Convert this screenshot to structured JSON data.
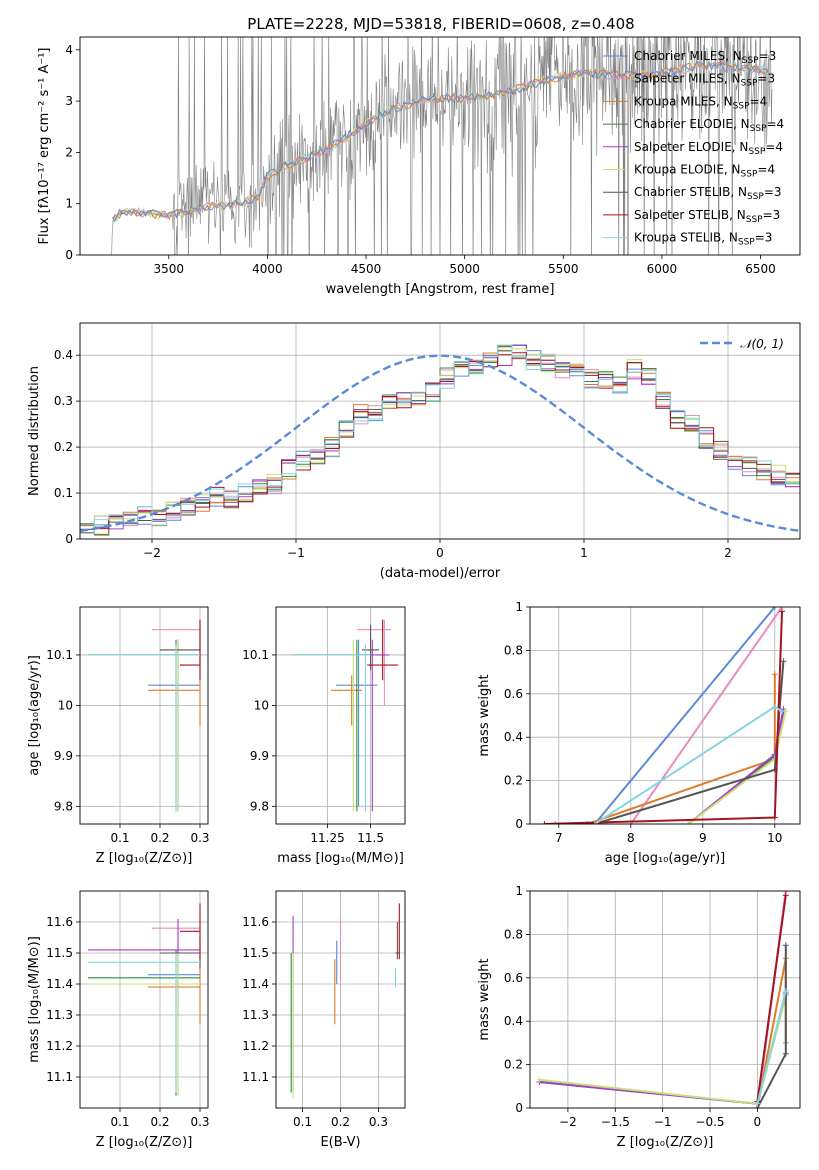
{
  "figure_title": "PLATE=2228, MJD=53818, FIBERID=0608, z=0.408",
  "colors": {
    "Chabrier MILES": "#5b8bd8",
    "Salpeter MILES": "#e88cbf",
    "Kroupa MILES": "#e07b2a",
    "Chabrier ELODIE": "#2f8a3e",
    "Salpeter ELODIE": "#a83cc8",
    "Kroupa ELODIE": "#c6e07a",
    "Chabrier STELIB": "#555555",
    "Salpeter STELIB": "#a5141c",
    "Kroupa STELIB": "#86d4e0",
    "spectrum": "#808080",
    "gaussian": "#5b8bd8",
    "grid": "#b0b0b0"
  },
  "chart_data": [
    {
      "id": "spectrum",
      "type": "line",
      "xlabel": "wavelength [Angstrom, rest frame]",
      "ylabel": "Flux [f$_\\lambda$10$^{-17}$ erg cm$^{-2}$ s$^{-1}$ A$^{-1}$]",
      "ylabel_text": "Flux [fλ10⁻¹⁷ erg cm⁻² s⁻¹ A⁻¹]",
      "xlim": [
        3050,
        6700
      ],
      "ylim": [
        0,
        4.25
      ],
      "xticks": [
        3500,
        4000,
        4500,
        5000,
        5500,
        6000,
        6500
      ],
      "yticks": [
        0,
        1,
        2,
        3,
        4
      ],
      "grid": false,
      "legend_position": "top-right",
      "legend": [
        {
          "model": "Chabrier MILES",
          "label": "Chabrier MILES, N",
          "sub": "SSP",
          "suffix": "=3"
        },
        {
          "model": "Salpeter MILES",
          "label": "Salpeter MILES, N",
          "sub": "SSP",
          "suffix": "=3"
        },
        {
          "model": "Kroupa MILES",
          "label": "Kroupa MILES, N",
          "sub": "SSP",
          "suffix": "=4"
        },
        {
          "model": "Chabrier ELODIE",
          "label": "Chabrier ELODIE, N",
          "sub": "SSP",
          "suffix": "=4"
        },
        {
          "model": "Salpeter ELODIE",
          "label": "Salpeter ELODIE, N",
          "sub": "SSP",
          "suffix": "=4"
        },
        {
          "model": "Kroupa ELODIE",
          "label": "Kroupa ELODIE, N",
          "sub": "SSP",
          "suffix": "=4"
        },
        {
          "model": "Chabrier STELIB",
          "label": "Chabrier STELIB, N",
          "sub": "SSP",
          "suffix": "=3"
        },
        {
          "model": "Salpeter STELIB",
          "label": "Salpeter STELIB, N",
          "sub": "SSP",
          "suffix": "=3"
        },
        {
          "model": "Kroupa STELIB",
          "label": "Kroupa STELIB, N",
          "sub": "SSP",
          "suffix": "=3"
        }
      ],
      "continuum_points": [
        [
          3210,
          0
        ],
        [
          3215,
          0.65
        ],
        [
          3250,
          0.8
        ],
        [
          3300,
          0.85
        ],
        [
          3400,
          0.8
        ],
        [
          3500,
          0.78
        ],
        [
          3600,
          0.85
        ],
        [
          3700,
          0.95
        ],
        [
          3800,
          0.95
        ],
        [
          3900,
          1.05
        ],
        [
          3950,
          1.1
        ],
        [
          4000,
          1.55
        ],
        [
          4100,
          1.75
        ],
        [
          4200,
          1.9
        ],
        [
          4300,
          2.05
        ],
        [
          4400,
          2.3
        ],
        [
          4500,
          2.55
        ],
        [
          4600,
          2.8
        ],
        [
          4700,
          2.9
        ],
        [
          4800,
          3.05
        ],
        [
          5000,
          3.05
        ],
        [
          5200,
          3.15
        ],
        [
          5400,
          3.4
        ],
        [
          5600,
          3.55
        ],
        [
          5800,
          3.5
        ],
        [
          6000,
          3.55
        ],
        [
          6200,
          3.7
        ],
        [
          6400,
          3.65
        ],
        [
          6550,
          3.6
        ]
      ]
    },
    {
      "id": "residuals",
      "type": "bar",
      "xlabel": "(data-model)/error",
      "ylabel": "Normed distribution",
      "xlim": [
        -2.5,
        2.5
      ],
      "ylim": [
        0,
        0.47
      ],
      "xticks": [
        -2,
        -1,
        0,
        1,
        2
      ],
      "yticks": [
        0.0,
        0.1,
        0.2,
        0.3,
        0.4
      ],
      "grid": true,
      "legend_position": "top-right",
      "legend_label": "𝒩(0, 1)",
      "bin_width": 0.1,
      "bin_start": -2.5,
      "base_heights": [
        0.02,
        0.03,
        0.04,
        0.04,
        0.05,
        0.05,
        0.06,
        0.07,
        0.08,
        0.09,
        0.09,
        0.1,
        0.11,
        0.12,
        0.15,
        0.17,
        0.18,
        0.2,
        0.24,
        0.27,
        0.28,
        0.3,
        0.3,
        0.31,
        0.32,
        0.35,
        0.37,
        0.38,
        0.39,
        0.4,
        0.41,
        0.39,
        0.38,
        0.37,
        0.36,
        0.35,
        0.35,
        0.34,
        0.37,
        0.35,
        0.3,
        0.26,
        0.25,
        0.22,
        0.19,
        0.17,
        0.16,
        0.15,
        0.14,
        0.13,
        0.13,
        0.12,
        0.11,
        0.1,
        0.1,
        0.09,
        0.07,
        0.06,
        0.05,
        0.04,
        0.04,
        0.03,
        0.03,
        0.03,
        0.04,
        0.05,
        0.05,
        0.05,
        0.04,
        0.04,
        0.03
      ]
    },
    {
      "id": "age-vs-Z",
      "type": "scatter",
      "xlabel": "Z [log₁₀(Z/Z⊙)]",
      "ylabel": "age  [log₁₀(age/yr)]",
      "xlim": [
        0.0,
        0.32
      ],
      "ylim": [
        9.765,
        10.195
      ],
      "xticks": [
        0.1,
        0.2,
        0.3
      ],
      "yticks": [
        9.8,
        9.9,
        10.0,
        10.1
      ],
      "grid": true
    },
    {
      "id": "age-vs-mass",
      "type": "scatter",
      "xlabel": "mass [log₁₀(M/M⊙)]",
      "xlim": [
        10.95,
        11.7
      ],
      "ylim": [
        9.765,
        10.195
      ],
      "xticks": [
        11.25,
        11.5
      ],
      "yticks": [
        9.8,
        9.9,
        10.0,
        10.1
      ],
      "grid": true
    },
    {
      "id": "weight-vs-age",
      "type": "line",
      "xlabel": "age  [log₁₀(age/yr)]",
      "ylabel": "mass weight",
      "xlim": [
        6.6,
        10.35
      ],
      "ylim": [
        0,
        1.0
      ],
      "xticks": [
        7,
        8,
        9,
        10
      ],
      "yticks": [
        0.0,
        0.2,
        0.4,
        0.6,
        0.8,
        1.0
      ],
      "grid": true
    },
    {
      "id": "mass-vs-Z",
      "type": "scatter",
      "xlabel": "Z [log₁₀(Z/Z⊙)]",
      "ylabel": "mass [log₁₀(M/M⊙)]",
      "xlim": [
        0.0,
        0.32
      ],
      "ylim": [
        11.0,
        11.7
      ],
      "xticks": [
        0.1,
        0.2,
        0.3
      ],
      "yticks": [
        11.1,
        11.2,
        11.3,
        11.4,
        11.5,
        11.6
      ],
      "grid": true
    },
    {
      "id": "mass-vs-ebv",
      "type": "scatter",
      "xlabel": "E(B-V)",
      "xlim": [
        0.03,
        0.37
      ],
      "ylim": [
        11.0,
        11.7
      ],
      "xticks": [
        0.1,
        0.2,
        0.3
      ],
      "yticks": [
        11.1,
        11.2,
        11.3,
        11.4,
        11.5,
        11.6
      ],
      "grid": true
    },
    {
      "id": "weight-vs-Z",
      "type": "line",
      "xlabel": "Z [log₁₀(Z/Z⊙)]",
      "ylabel": "mass weight",
      "xlim": [
        -2.4,
        0.45
      ],
      "ylim": [
        0,
        1.0
      ],
      "xticks": [
        -2.0,
        -1.5,
        -1.0,
        -0.5,
        0.0
      ],
      "yticks": [
        0.0,
        0.2,
        0.4,
        0.6,
        0.8,
        1.0
      ],
      "grid": true
    }
  ],
  "fits": [
    {
      "model": "Chabrier MILES",
      "Z": 0.245,
      "Zlo": 0.17,
      "Zhi": 0.3,
      "age": 10.04,
      "ageLo": 9.8,
      "ageHi": 10.13,
      "mass": 11.43,
      "massLo": 11.3,
      "massHi": 11.54,
      "ebv": 0.19,
      "ebvLo": 0.19,
      "ebvHi": 0.19,
      "ebvMassLo": 11.4,
      "ebvMassHi": 11.54,
      "weights": [
        [
          7.5,
          0.0
        ],
        [
          10.0,
          1.0
        ]
      ],
      "Zweights": [
        [
          0.0,
          0.0
        ],
        [
          0.3,
          1.0
        ]
      ]
    },
    {
      "model": "Salpeter MILES",
      "Z": 0.3,
      "Zlo": 0.18,
      "Zhi": 0.3,
      "age": 10.15,
      "ageLo": 10.0,
      "ageHi": 10.17,
      "mass": 11.58,
      "massLo": 11.42,
      "massHi": 11.62,
      "ebv": 0.2,
      "ebvLo": 0.2,
      "ebvHi": 0.2,
      "ebvMassLo": 11.41,
      "ebvMassHi": 11.61,
      "weights": [
        [
          8.0,
          0.0
        ],
        [
          10.1,
          1.0
        ]
      ],
      "Zweights": [
        [
          0.0,
          0.0
        ],
        [
          0.3,
          1.0
        ]
      ]
    },
    {
      "model": "Kroupa MILES",
      "Z": 0.3,
      "Zlo": 0.17,
      "Zhi": 0.3,
      "age": 10.03,
      "ageLo": 9.96,
      "ageHi": 10.06,
      "mass": 11.39,
      "massLo": 11.27,
      "massHi": 11.45,
      "ebv": 0.185,
      "ebvLo": 0.185,
      "ebvHi": 0.185,
      "ebvMassLo": 11.27,
      "ebvMassHi": 11.48,
      "weights": [
        [
          6.95,
          0.0
        ],
        [
          7.4,
          0.0
        ],
        [
          10.0,
          0.3
        ],
        [
          10.0,
          0.69
        ]
      ],
      "Zweights": [
        [
          0.0,
          0.0
        ],
        [
          0.3,
          0.69
        ],
        [
          0.3,
          0.3
        ]
      ]
    },
    {
      "model": "Chabrier ELODIE",
      "Z": 0.24,
      "Zlo": 0.02,
      "Zhi": 0.3,
      "age": 10.1,
      "ageLo": 9.79,
      "ageHi": 10.13,
      "mass": 11.42,
      "massLo": 11.04,
      "massHi": 11.51,
      "ebv": 0.07,
      "ebvLo": 0.07,
      "ebvHi": 0.07,
      "ebvMassLo": 11.05,
      "ebvMassHi": 11.5,
      "weights": [
        [
          8.8,
          0.0
        ],
        [
          10.0,
          0.31
        ],
        [
          10.12,
          0.52
        ]
      ],
      "Zweights": [
        [
          -2.3,
          0.12
        ],
        [
          0.0,
          0.02
        ],
        [
          0.3,
          0.52
        ]
      ]
    },
    {
      "model": "Salpeter ELODIE",
      "Z": 0.245,
      "Zlo": 0.02,
      "Zhi": 0.3,
      "age": 10.1,
      "ageLo": 9.79,
      "ageHi": 10.13,
      "mass": 11.51,
      "massLo": 11.04,
      "massHi": 11.61,
      "ebv": 0.075,
      "ebvLo": 0.075,
      "ebvHi": 0.075,
      "ebvMassLo": 11.06,
      "ebvMassHi": 11.62,
      "weights": [
        [
          8.8,
          0.0
        ],
        [
          10.0,
          0.32
        ],
        [
          10.12,
          0.53
        ]
      ],
      "Zweights": [
        [
          -2.3,
          0.12
        ],
        [
          0.0,
          0.02
        ],
        [
          0.3,
          0.53
        ]
      ]
    },
    {
      "model": "Kroupa ELODIE",
      "Z": 0.245,
      "Zlo": 0.02,
      "Zhi": 0.3,
      "age": 10.1,
      "ageLo": 9.79,
      "ageHi": 10.13,
      "mass": 11.4,
      "massLo": 11.04,
      "massHi": 11.5,
      "ebv": 0.075,
      "ebvLo": 0.075,
      "ebvHi": 0.075,
      "ebvMassLo": 11.03,
      "ebvMassHi": 11.5,
      "weights": [
        [
          8.8,
          0.0
        ],
        [
          10.0,
          0.3
        ],
        [
          10.15,
          0.52
        ]
      ],
      "Zweights": [
        [
          -2.3,
          0.13
        ],
        [
          0.0,
          0.02
        ],
        [
          0.3,
          0.52
        ]
      ]
    },
    {
      "model": "Chabrier STELIB",
      "Z": 0.3,
      "Zlo": 0.2,
      "Zhi": 0.3,
      "age": 10.11,
      "ageLo": 10.07,
      "ageHi": 10.16,
      "mass": 11.5,
      "massLo": 11.45,
      "massHi": 11.55,
      "ebv": 0.35,
      "ebvLo": 0.345,
      "ebvHi": 0.355,
      "ebvMassLo": 11.48,
      "ebvMassHi": 11.6,
      "weights": [
        [
          7.5,
          0.0
        ],
        [
          10.0,
          0.25
        ],
        [
          10.12,
          0.75
        ]
      ],
      "Zweights": [
        [
          0.0,
          0.0
        ],
        [
          0.3,
          0.25
        ],
        [
          0.3,
          0.75
        ]
      ]
    },
    {
      "model": "Salpeter STELIB",
      "Z": 0.3,
      "Zlo": 0.25,
      "Zhi": 0.3,
      "age": 10.08,
      "ageLo": 10.05,
      "ageHi": 10.17,
      "mass": 11.57,
      "massLo": 11.48,
      "massHi": 11.66,
      "ebv": 0.355,
      "ebvLo": 0.355,
      "ebvHi": 0.355,
      "ebvMassLo": 11.48,
      "ebvMassHi": 11.66,
      "weights": [
        [
          6.8,
          0.0
        ],
        [
          10.0,
          0.03
        ],
        [
          10.1,
          0.98
        ]
      ],
      "Zweights": [
        [
          0.0,
          0.03
        ],
        [
          0.3,
          0.98
        ]
      ]
    },
    {
      "model": "Kroupa STELIB",
      "Z": 0.24,
      "Zlo": 0.02,
      "Zhi": 0.3,
      "age": 10.1,
      "ageLo": 9.79,
      "ageHi": 10.12,
      "mass": 11.47,
      "massLo": 11.05,
      "massHi": 11.5,
      "ebv": 0.345,
      "ebvLo": 0.345,
      "ebvHi": 0.345,
      "ebvMassLo": 11.39,
      "ebvMassHi": 11.45,
      "weights": [
        [
          7.5,
          0.0
        ],
        [
          10.0,
          0.54
        ],
        [
          10.1,
          0.52
        ]
      ],
      "Zweights": [
        [
          0.0,
          0.02
        ],
        [
          0.3,
          0.54
        ]
      ]
    }
  ]
}
